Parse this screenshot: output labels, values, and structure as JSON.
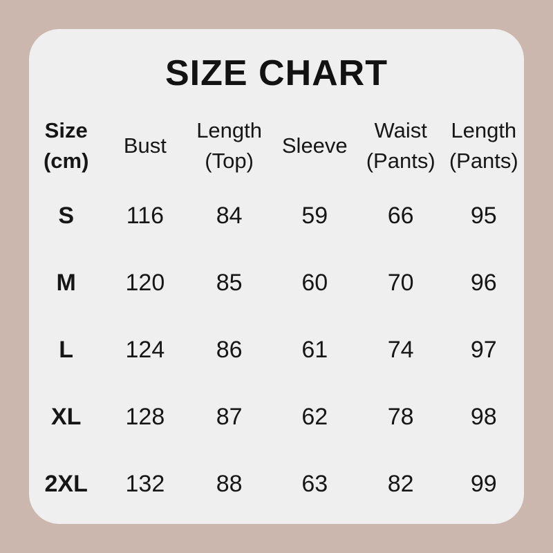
{
  "colors": {
    "page_background": "#cbb7ae",
    "card_background": "#f0efef",
    "text": "#161616"
  },
  "title": "SIZE CHART",
  "table": {
    "headers": [
      {
        "line1": "Size",
        "line2": "(cm)"
      },
      {
        "line1": "Bust",
        "line2": ""
      },
      {
        "line1": "Length",
        "line2": "(Top)"
      },
      {
        "line1": "Sleeve",
        "line2": ""
      },
      {
        "line1": "Waist",
        "line2": "(Pants)"
      },
      {
        "line1": "Length",
        "line2": "(Pants)"
      }
    ],
    "rows": [
      {
        "size": "S",
        "bust": "116",
        "length_top": "84",
        "sleeve": "59",
        "waist": "66",
        "length_pants": "95"
      },
      {
        "size": "M",
        "bust": "120",
        "length_top": "85",
        "sleeve": "60",
        "waist": "70",
        "length_pants": "96"
      },
      {
        "size": "L",
        "bust": "124",
        "length_top": "86",
        "sleeve": "61",
        "waist": "74",
        "length_pants": "97"
      },
      {
        "size": "XL",
        "bust": "128",
        "length_top": "87",
        "sleeve": "62",
        "waist": "78",
        "length_pants": "98"
      },
      {
        "size": "2XL",
        "bust": "132",
        "length_top": "88",
        "sleeve": "63",
        "waist": "82",
        "length_pants": "99"
      }
    ]
  },
  "chart_data": {
    "type": "table",
    "title": "SIZE CHART",
    "columns": [
      "Size (cm)",
      "Bust",
      "Length (Top)",
      "Sleeve",
      "Waist (Pants)",
      "Length (Pants)"
    ],
    "rows": [
      [
        "S",
        116,
        84,
        59,
        66,
        95
      ],
      [
        "M",
        120,
        85,
        60,
        70,
        96
      ],
      [
        "L",
        124,
        86,
        61,
        74,
        97
      ],
      [
        "XL",
        128,
        87,
        62,
        78,
        98
      ],
      [
        "2XL",
        132,
        88,
        63,
        82,
        99
      ]
    ],
    "units": "cm",
    "layout": "header row on top, 5 size rows, all cells center-aligned, no gridlines"
  }
}
